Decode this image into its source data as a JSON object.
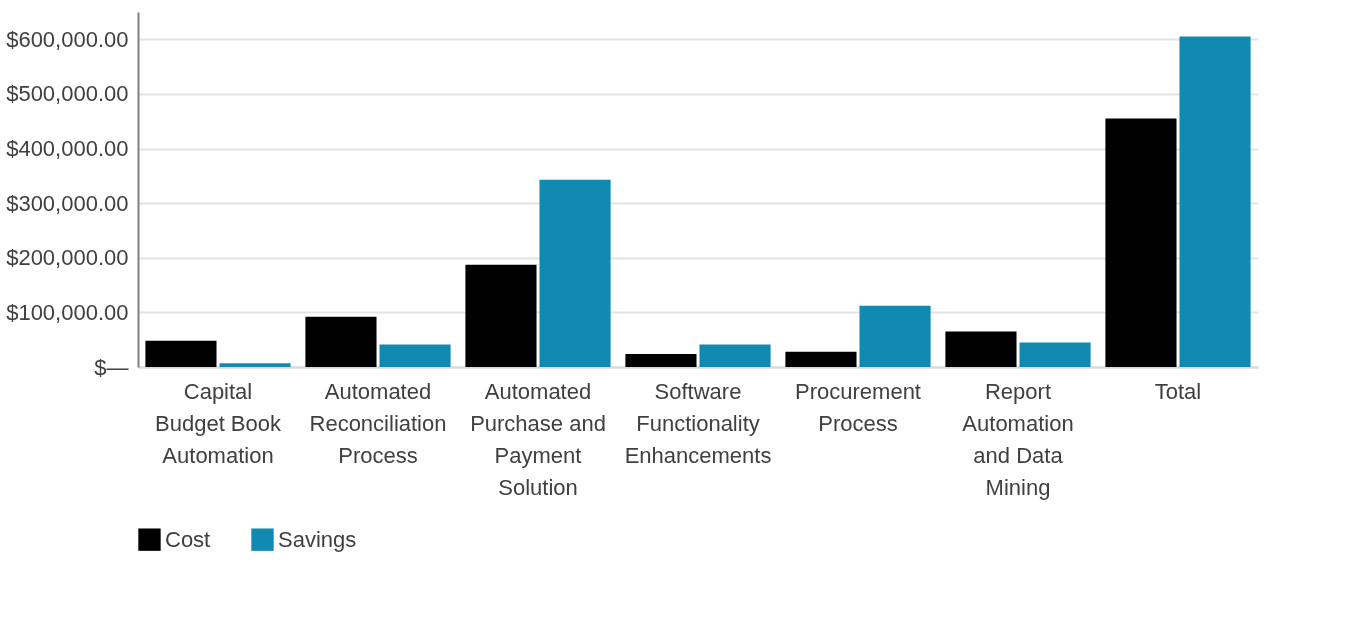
{
  "chart_data": {
    "type": "bar",
    "categories": [
      "Capital Budget Book Automation",
      "Automated Reconciliation Process",
      "Automated Purchase and Payment Solution",
      "Software Functionality Enhancements",
      "Procurement Process",
      "Report Automation and Data Mining",
      "Total"
    ],
    "series": [
      {
        "name": "Cost",
        "color": "#000000",
        "values": [
          48000,
          92000,
          187000,
          24000,
          28000,
          65000,
          455000
        ]
      },
      {
        "name": "Savings",
        "color": "#108ab0",
        "values": [
          7000,
          41000,
          343000,
          41000,
          112000,
          45000,
          605000
        ]
      }
    ],
    "ylim": [
      0,
      650000
    ],
    "yticks": [
      {
        "value": 0,
        "label": "$—"
      },
      {
        "value": 100000,
        "label": "$100,000.00"
      },
      {
        "value": 200000,
        "label": "$200,000.00"
      },
      {
        "value": 300000,
        "label": "$300,000.00"
      },
      {
        "value": 400000,
        "label": "$400,000.00"
      },
      {
        "value": 500000,
        "label": "$500,000.00"
      },
      {
        "value": 600000,
        "label": "$600,000.00"
      }
    ],
    "grid": "y",
    "legend": "bottom"
  }
}
